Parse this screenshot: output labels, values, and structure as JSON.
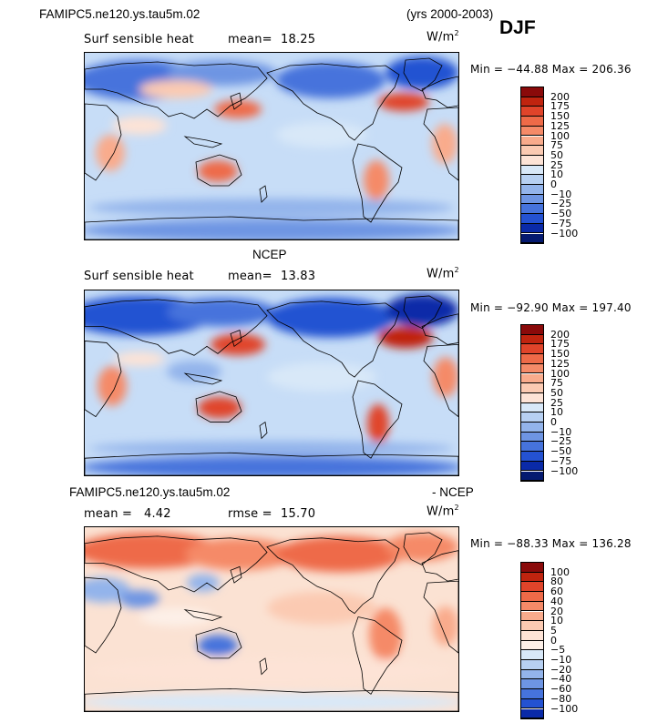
{
  "header": {
    "model_title": "FAMIPC5.ne120.ys.tau5m.02",
    "years": "(yrs 2000-2003)",
    "season": "DJF"
  },
  "panels": [
    {
      "id": "model",
      "field": "Surf sensible heat",
      "stat_label": "mean=",
      "stat_value": "18.25",
      "units": "W/m",
      "units_exp": "2",
      "minmax": "Min = −44.88  Max = 206.36"
    },
    {
      "id": "obs",
      "title": "NCEP",
      "field": "Surf sensible heat",
      "stat_label": "mean=",
      "stat_value": "13.83",
      "units": "W/m",
      "units_exp": "2",
      "minmax": "Min = −92.90  Max = 197.40"
    },
    {
      "id": "diff",
      "title_left": "FAMIPC5.ne120.ys.tau5m.02",
      "title_right": "- NCEP",
      "field": "mean =",
      "stat_label": "",
      "stat_value": "4.42",
      "rmse_label": "rmse =",
      "rmse_value": "15.70",
      "units": "W/m",
      "units_exp": "2",
      "minmax": "Min = −88.33  Max = 136.28"
    }
  ],
  "chart_data": [
    {
      "type": "heatmap",
      "title": "Surf sensible heat",
      "colorbar_levels": [
        200,
        175,
        150,
        125,
        100,
        75,
        50,
        25,
        10,
        0,
        -10,
        -25,
        -50,
        -75,
        -100
      ],
      "colorbar_labels": [
        "200",
        "175",
        "150",
        "125",
        "100",
        "75",
        "50",
        "25",
        "10",
        "0",
        "−10",
        "−25",
        "−50",
        "−75",
        "−100"
      ],
      "colors": [
        "#8a0a0a",
        "#c0240f",
        "#e0442a",
        "#ee6a48",
        "#f58a68",
        "#f9ab8c",
        "#fbcab2",
        "#fde3d6",
        "#d8e8f8",
        "#b7d0f2",
        "#93b4eb",
        "#6e95e3",
        "#4673dc",
        "#2452d2",
        "#0a2aa8",
        "#051a70"
      ],
      "mean": 18.25,
      "min": -44.88,
      "max": 206.36
    },
    {
      "type": "heatmap",
      "title": "NCEP",
      "colorbar_levels": [
        200,
        175,
        150,
        125,
        100,
        75,
        50,
        25,
        10,
        0,
        -10,
        -25,
        -50,
        -75,
        -100
      ],
      "colorbar_labels": [
        "200",
        "175",
        "150",
        "125",
        "100",
        "75",
        "50",
        "25",
        "10",
        "0",
        "−10",
        "−25",
        "−50",
        "−75",
        "−100"
      ],
      "colors": [
        "#8a0a0a",
        "#c0240f",
        "#e0442a",
        "#ee6a48",
        "#f58a68",
        "#f9ab8c",
        "#fbcab2",
        "#fde3d6",
        "#d8e8f8",
        "#b7d0f2",
        "#93b4eb",
        "#6e95e3",
        "#4673dc",
        "#2452d2",
        "#0a2aa8",
        "#051a70"
      ],
      "mean": 13.83,
      "min": -92.9,
      "max": 197.4
    },
    {
      "type": "heatmap",
      "title": "FAMIPC5.ne120.ys.tau5m.02 - NCEP",
      "colorbar_levels": [
        100,
        80,
        60,
        40,
        20,
        10,
        5,
        0,
        -5,
        -10,
        -20,
        -40,
        -60,
        -80,
        -100
      ],
      "colorbar_labels": [
        "100",
        "80",
        "60",
        "40",
        "20",
        "10",
        "5",
        "0",
        "−5",
        "−10",
        "−20",
        "−40",
        "−60",
        "−80",
        "−100"
      ],
      "colors": [
        "#8a0a0a",
        "#c0240f",
        "#e0442a",
        "#ee6a48",
        "#f58a68",
        "#f9ab8c",
        "#fbcab2",
        "#fde3d6",
        "#fdf0e8",
        "#d8e8f8",
        "#b7d0f2",
        "#93b4eb",
        "#6e95e3",
        "#4673dc",
        "#2452d2",
        "#0a2aa8"
      ],
      "mean": 4.42,
      "rmse": 15.7,
      "min": -88.33,
      "max": 136.28
    }
  ]
}
